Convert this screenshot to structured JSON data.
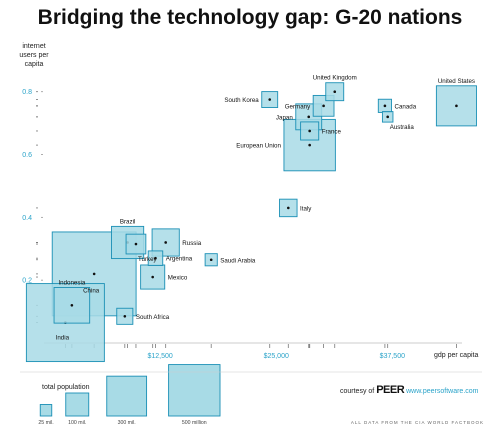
{
  "title": "Bridging the technology gap: G-20 nations",
  "chart_data": {
    "type": "scatter",
    "title": "Bridging the technology gap: G-20 nations",
    "ylabel": "internet users per capita",
    "xlabel": "gdp per capita",
    "xlim": [
      0,
      45000
    ],
    "ylim": [
      0,
      0.85
    ],
    "x_ticks": [
      {
        "value": 12500,
        "label": "$12,500"
      },
      {
        "value": 25000,
        "label": "$25,000"
      },
      {
        "value": 37500,
        "label": "$37,500"
      }
    ],
    "y_ticks": [
      {
        "value": 0.2,
        "label": "0.2"
      },
      {
        "value": 0.4,
        "label": "0.4"
      },
      {
        "value": 0.6,
        "label": "0.6"
      },
      {
        "value": 0.8,
        "label": "0.8"
      }
    ],
    "size_unit": "total population",
    "points": [
      {
        "name": "India",
        "x": 2300,
        "y": 0.065,
        "population_millions": 1150,
        "label_side": "inside"
      },
      {
        "name": "China",
        "x": 5400,
        "y": 0.22,
        "population_millions": 1330,
        "label_side": "inside"
      },
      {
        "name": "Indonesia",
        "x": 3000,
        "y": 0.12,
        "population_millions": 240,
        "label_side": "top"
      },
      {
        "name": "South Africa",
        "x": 8700,
        "y": 0.085,
        "population_millions": 49,
        "label_side": "right"
      },
      {
        "name": "Brazil",
        "x": 9000,
        "y": 0.32,
        "population_millions": 196,
        "label_side": "top"
      },
      {
        "name": "Turkey",
        "x": 9900,
        "y": 0.315,
        "population_millions": 74,
        "label_side": "bottom"
      },
      {
        "name": "Mexico",
        "x": 11700,
        "y": 0.21,
        "population_millions": 110,
        "label_side": "right"
      },
      {
        "name": "Argentina",
        "x": 12000,
        "y": 0.27,
        "population_millions": 40,
        "label_side": "right"
      },
      {
        "name": "Russia",
        "x": 13100,
        "y": 0.32,
        "population_millions": 140,
        "label_side": "right"
      },
      {
        "name": "Saudi Arabia",
        "x": 18000,
        "y": 0.265,
        "population_millions": 28,
        "label_side": "right"
      },
      {
        "name": "Italy",
        "x": 26300,
        "y": 0.43,
        "population_millions": 58,
        "label_side": "right"
      },
      {
        "name": "European Union",
        "x": 28600,
        "y": 0.63,
        "population_millions": 500,
        "label_side": "left"
      },
      {
        "name": "South Korea",
        "x": 24300,
        "y": 0.775,
        "population_millions": 48,
        "label_side": "left"
      },
      {
        "name": "Japan",
        "x": 28500,
        "y": 0.72,
        "population_millions": 127,
        "label_side": "left"
      },
      {
        "name": "France",
        "x": 28600,
        "y": 0.675,
        "population_millions": 62,
        "label_side": "right"
      },
      {
        "name": "Germany",
        "x": 30100,
        "y": 0.755,
        "population_millions": 82,
        "label_side": "left"
      },
      {
        "name": "United Kingdom",
        "x": 31300,
        "y": 0.8,
        "population_millions": 61,
        "label_side": "top"
      },
      {
        "name": "Canada",
        "x": 36700,
        "y": 0.755,
        "population_millions": 33,
        "label_side": "right"
      },
      {
        "name": "Australia",
        "x": 37000,
        "y": 0.72,
        "population_millions": 21,
        "label_side": "bottom"
      },
      {
        "name": "United States",
        "x": 44400,
        "y": 0.755,
        "population_millions": 304,
        "label_side": "top"
      }
    ],
    "legend": {
      "title": "total population",
      "items": [
        {
          "label": "25 mil.",
          "population_millions": 25
        },
        {
          "label": "100 mil.",
          "population_millions": 100
        },
        {
          "label": "300 mil.",
          "population_millions": 300
        },
        {
          "label": "500 million",
          "population_millions": 500
        }
      ]
    }
  },
  "footer": {
    "courtesy_label": "courtesy of",
    "logo_text": "PEER",
    "logo_url": "www.peersoftware.com",
    "source": "ALL DATA FROM THE CIA WORLD FACTBOOK"
  },
  "colors": {
    "box_fill": "#a8dbe6",
    "box_stroke": "#1a8fb5",
    "axis": "#999999",
    "tick_label": "#2aa3c9"
  }
}
